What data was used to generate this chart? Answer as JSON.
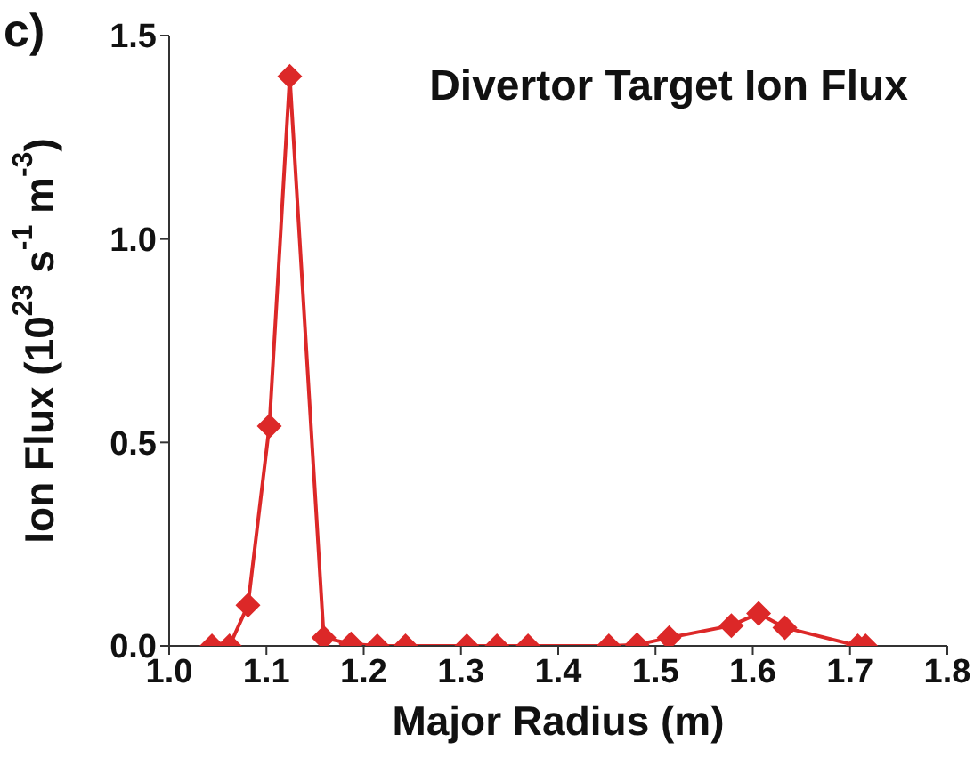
{
  "chart_data": {
    "type": "line",
    "title": "Divertor Target Ion Flux",
    "xlabel": "Major Radius (m)",
    "ylabel": "Ion Flux (10$^{23}$ s$^{-1}$ m$^{-3}$)",
    "annotations": [
      "c)"
    ],
    "x": [
      1.044,
      1.062,
      1.081,
      1.103,
      1.124,
      1.159,
      1.187,
      1.214,
      1.243,
      1.306,
      1.337,
      1.369,
      1.452,
      1.481,
      1.514,
      1.578,
      1.606,
      1.633,
      1.708,
      1.716
    ],
    "series": [
      {
        "color": "#dc2828",
        "values": [
          0,
          0,
          0.1,
          0.54,
          1.4,
          0.02,
          0.005,
          0,
          0,
          0,
          0,
          0,
          0,
          0.003,
          0.02,
          0.05,
          0.08,
          0.045,
          0,
          0
        ]
      }
    ],
    "xlim": [
      1.0,
      1.8
    ],
    "xticks": [
      {
        "value": 1.0,
        "label": "1.0"
      },
      {
        "value": 1.1,
        "label": "1.1"
      },
      {
        "value": 1.2,
        "label": "1.2"
      },
      {
        "value": 1.3,
        "label": "1.3"
      },
      {
        "value": 1.4,
        "label": "1.4"
      },
      {
        "value": 1.5,
        "label": "1.5"
      },
      {
        "value": 1.6,
        "label": "1.6"
      },
      {
        "value": 1.7,
        "label": "1.7"
      },
      {
        "value": 1.8,
        "label": "1.8"
      }
    ],
    "ylim": [
      0,
      1.5
    ],
    "yticks": [
      {
        "value": 0,
        "label": "0.0"
      },
      {
        "value": 0.5,
        "label": "0.5"
      },
      {
        "value": 1.0,
        "label": "1.0"
      },
      {
        "value": 1.5,
        "label": "1.5"
      }
    ],
    "marker": "diamond",
    "line_style": "solid"
  }
}
